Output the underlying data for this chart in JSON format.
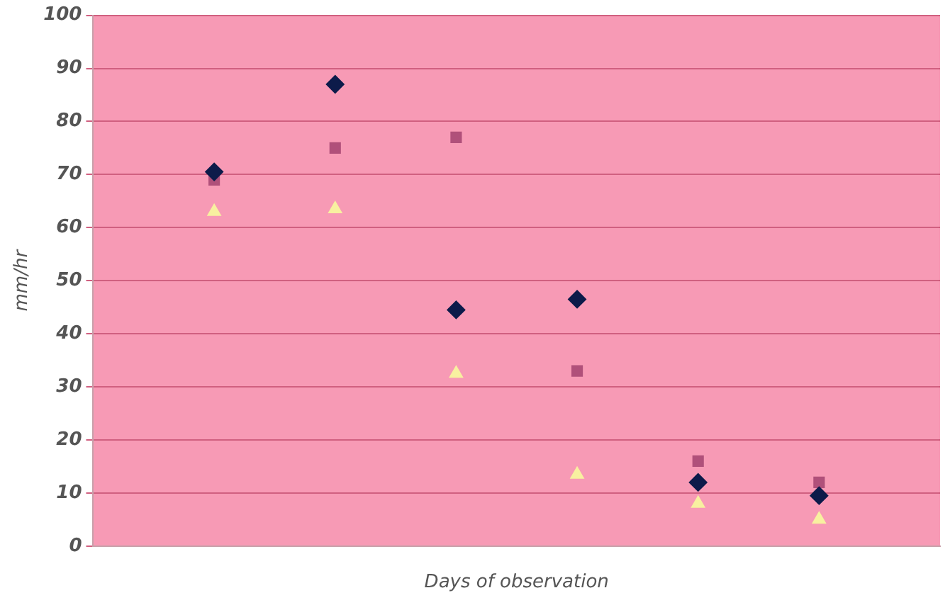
{
  "chart_data": {
    "type": "scatter",
    "xlabel": "Days of observation",
    "ylabel": "mm/hr",
    "categories": [
      null,
      null,
      null,
      null,
      null,
      null,
      null,
      null
    ],
    "ylim": [
      0,
      100
    ],
    "yticks": [
      0,
      10,
      20,
      30,
      40,
      50,
      60,
      70,
      80,
      90,
      100
    ],
    "grid": "y",
    "tick_labels": "y",
    "legend": false,
    "series": [
      {
        "color": "#0d1b4a",
        "marker": "diamond",
        "values": [
          null,
          70.5,
          87,
          44.5,
          46.5,
          12,
          9.5,
          null
        ]
      },
      {
        "color": "#b0507a",
        "marker": "square",
        "values": [
          null,
          69,
          75,
          77,
          33,
          16,
          12,
          null
        ]
      },
      {
        "color": "#f8f0a0",
        "marker": "triangle",
        "values": [
          null,
          63,
          63.5,
          32.5,
          13.5,
          8,
          5,
          null
        ]
      }
    ]
  }
}
